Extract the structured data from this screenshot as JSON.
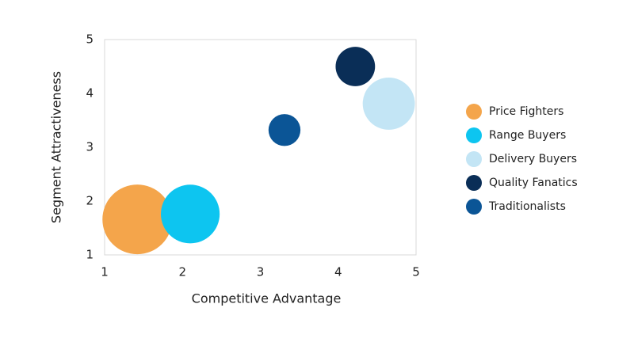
{
  "chart_data": {
    "type": "bubble",
    "x_label": "Competitive Advantage",
    "y_label": "Segment Attractiveness",
    "xlim": [
      1,
      5
    ],
    "ylim": [
      1,
      5
    ],
    "xticks": [
      1,
      2,
      3,
      4,
      5
    ],
    "yticks": [
      1,
      2,
      3,
      4,
      5
    ],
    "legend": "right",
    "series": [
      {
        "name": "Price Fighters",
        "color": "#f4a54b",
        "x": [
          1.42
        ],
        "values": [
          1.66
        ],
        "sizes": [
          100
        ]
      },
      {
        "name": "Range Buyers",
        "color": "#0dc5f0",
        "x": [
          2.1
        ],
        "values": [
          1.76
        ],
        "sizes": [
          71
        ]
      },
      {
        "name": "Delivery Buyers",
        "color": "#c3e5f5",
        "x": [
          4.65
        ],
        "values": [
          3.81
        ],
        "sizes": [
          56
        ]
      },
      {
        "name": "Quality Fanatics",
        "color": "#0a2e57",
        "x": [
          4.22
        ],
        "values": [
          4.5
        ],
        "sizes": [
          32
        ]
      },
      {
        "name": "Traditionalists",
        "color": "#0b5596",
        "x": [
          3.31
        ],
        "values": [
          3.32
        ],
        "sizes": [
          21
        ]
      }
    ]
  }
}
